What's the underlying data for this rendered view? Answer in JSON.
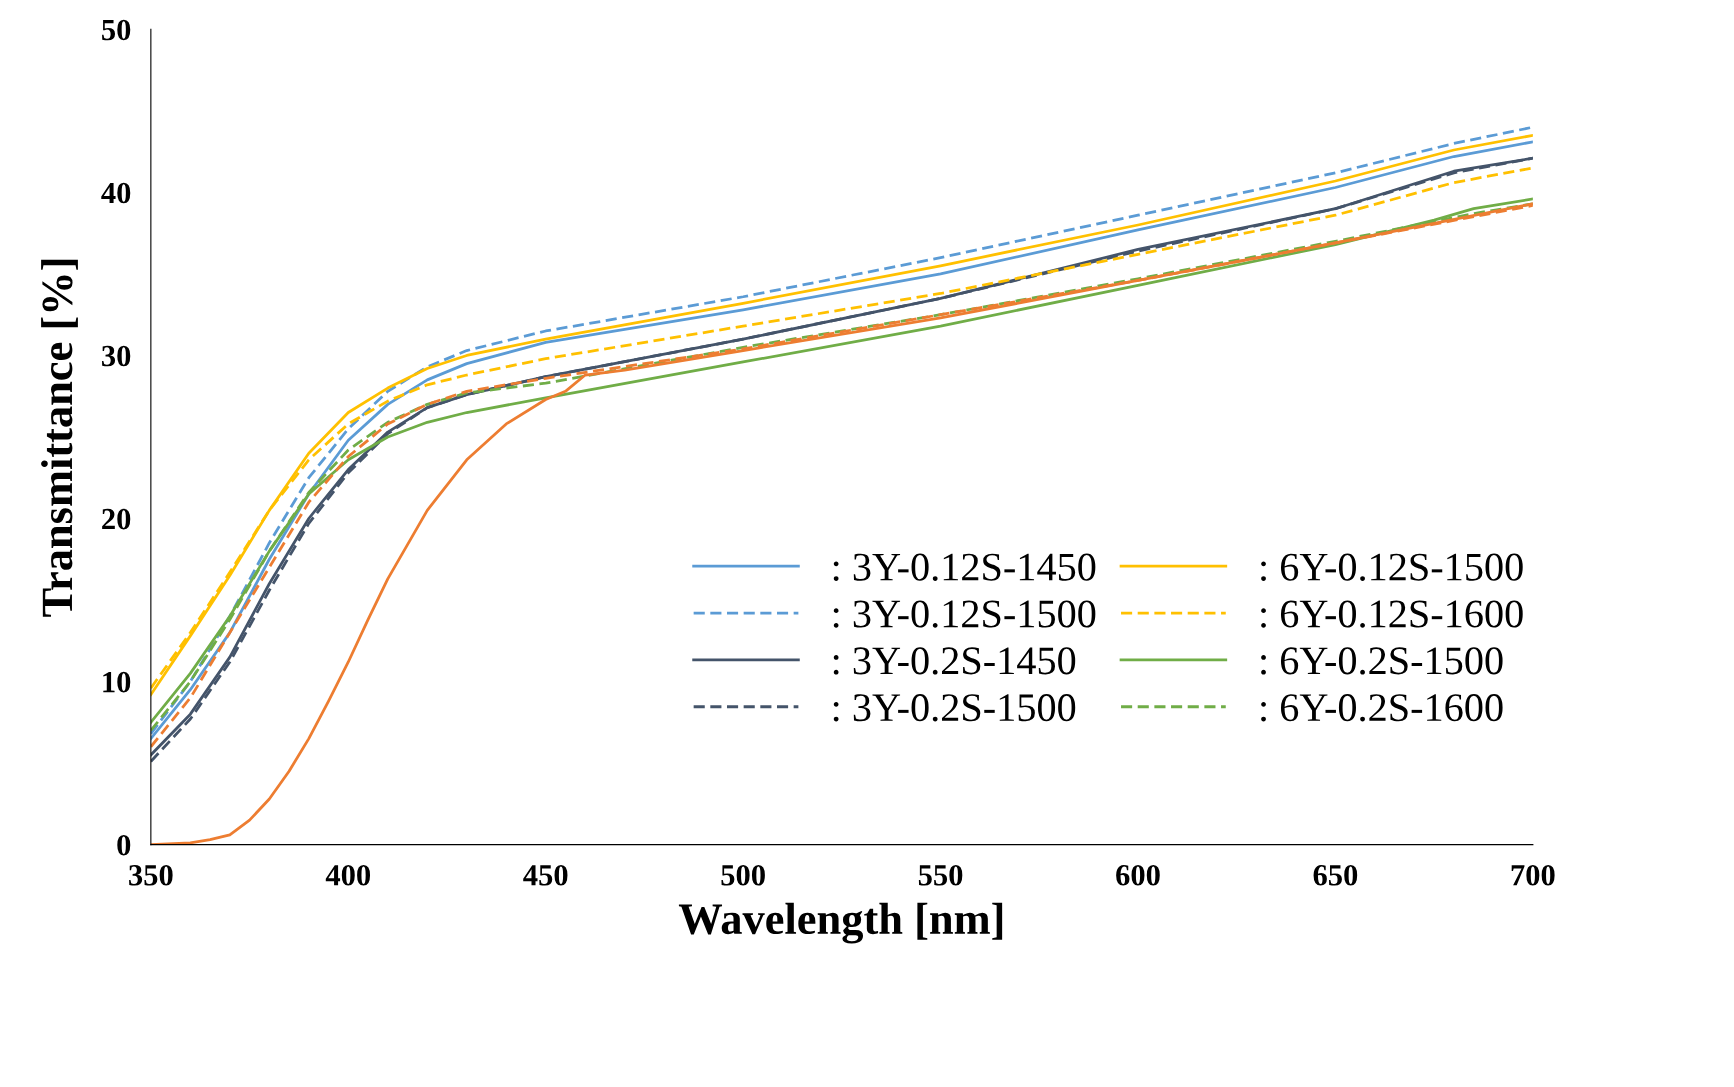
{
  "chart_data": {
    "type": "line",
    "xlabel": "Wavelength [nm]",
    "ylabel": "Transmittance [%]",
    "xlim": [
      350,
      700
    ],
    "ylim": [
      0,
      50
    ],
    "xticks": [
      350,
      400,
      450,
      500,
      550,
      600,
      650,
      700
    ],
    "yticks": [
      0,
      10,
      20,
      30,
      40,
      50
    ],
    "grid": false,
    "legend": "right",
    "marker": "none",
    "series": [
      {
        "name": ": 3Y-0.12S-1450",
        "color": "#5b9bd5",
        "line_style": "solid",
        "x": [
          350,
          360,
          370,
          380,
          390,
          400,
          410,
          420,
          430,
          450,
          500,
          550,
          600,
          650,
          680,
          700
        ],
        "values": [
          6.5,
          9.5,
          13,
          17.5,
          21.5,
          24.8,
          27,
          28.5,
          29.5,
          30.8,
          32.8,
          35,
          37.7,
          40.3,
          42.2,
          43.1
        ]
      },
      {
        "name": ": 3Y-0.12S-1500",
        "color": "#5b9bd5",
        "line_style": "dashed",
        "x": [
          350,
          360,
          370,
          380,
          390,
          400,
          410,
          420,
          430,
          450,
          500,
          550,
          600,
          650,
          680,
          700
        ],
        "values": [
          6.8,
          10,
          14,
          18.5,
          22.5,
          25.5,
          27.8,
          29.3,
          30.3,
          31.5,
          33.6,
          36,
          38.6,
          41.2,
          43,
          44
        ]
      },
      {
        "name": ": 3Y-0.2S-1450",
        "color": "#44546a",
        "line_style": "solid",
        "x": [
          350,
          360,
          370,
          380,
          390,
          400,
          410,
          420,
          430,
          450,
          500,
          550,
          600,
          650,
          680,
          700
        ],
        "values": [
          5.5,
          8,
          11.5,
          16,
          20,
          23,
          25.3,
          26.8,
          27.6,
          28.7,
          31,
          33.5,
          36.5,
          39,
          41.3,
          42.1
        ]
      },
      {
        "name": ": 3Y-0.2S-1500",
        "color": "#44546a",
        "line_style": "dashed",
        "x": [
          350,
          360,
          370,
          380,
          390,
          400,
          410,
          420,
          430,
          450,
          500,
          550,
          600,
          650,
          680,
          700
        ],
        "values": [
          5.1,
          7.7,
          11.2,
          15.6,
          19.7,
          22.8,
          25.2,
          26.8,
          27.6,
          28.7,
          31,
          33.5,
          36.4,
          39,
          41.2,
          42.1
        ]
      },
      {
        "name": ": 6Y-0.12S-1500",
        "color": "#ffc000",
        "line_style": "solid",
        "x": [
          350,
          360,
          370,
          380,
          390,
          400,
          410,
          420,
          430,
          450,
          500,
          550,
          600,
          650,
          680,
          700
        ],
        "values": [
          9.2,
          12.8,
          16.5,
          20.5,
          24,
          26.5,
          28,
          29.2,
          30,
          31,
          33.2,
          35.5,
          38,
          40.7,
          42.6,
          43.5
        ]
      },
      {
        "name": ": 6Y-0.12S-1600",
        "color": "#ffc000",
        "line_style": "dashed",
        "x": [
          350,
          360,
          370,
          380,
          390,
          400,
          410,
          420,
          430,
          450,
          500,
          550,
          600,
          650,
          680,
          700
        ],
        "values": [
          9.6,
          13,
          16.7,
          20.5,
          23.6,
          25.8,
          27.2,
          28.2,
          28.8,
          29.8,
          31.8,
          33.8,
          36.2,
          38.6,
          40.6,
          41.5
        ]
      },
      {
        "name": ": 6Y-0.2S-1500",
        "color": "#70ad47",
        "line_style": "solid",
        "x": [
          350,
          360,
          370,
          380,
          390,
          400,
          410,
          420,
          430,
          450,
          500,
          550,
          600,
          650,
          675,
          685,
          700
        ],
        "values": [
          7.5,
          10.5,
          14,
          18,
          21.5,
          23.6,
          25,
          25.9,
          26.5,
          27.4,
          29.6,
          31.8,
          34.3,
          36.8,
          38.3,
          39,
          39.6
        ]
      },
      {
        "name": ": 6Y-0.2S-1600",
        "color": "#70ad47",
        "line_style": "dashed",
        "x": [
          350,
          360,
          370,
          380,
          390,
          400,
          410,
          420,
          430,
          450,
          500,
          550,
          600,
          650,
          685,
          700
        ],
        "values": [
          7,
          10,
          13.8,
          18,
          21.6,
          24.2,
          25.9,
          27,
          27.7,
          28.3,
          30.5,
          32.5,
          34.7,
          37,
          38.7,
          39.3
        ]
      },
      {
        "color": "#ed7d31",
        "line_style": "solid",
        "x": [
          350,
          360,
          365,
          370,
          375,
          380,
          385,
          390,
          395,
          400,
          405,
          410,
          420,
          430,
          440,
          450,
          455,
          460,
          470,
          500,
          550,
          600,
          650,
          700
        ],
        "values": [
          0,
          0.1,
          0.3,
          0.6,
          1.5,
          2.8,
          4.5,
          6.5,
          8.8,
          11.2,
          13.8,
          16.3,
          20.5,
          23.6,
          25.8,
          27.3,
          27.8,
          28.8,
          29.1,
          30.3,
          32.3,
          34.6,
          36.9,
          39.3
        ]
      },
      {
        "color": "#ed7d31",
        "line_style": "dashed",
        "x": [
          350,
          360,
          370,
          380,
          390,
          400,
          410,
          420,
          430,
          450,
          500,
          550,
          600,
          650,
          700
        ],
        "values": [
          6,
          9,
          13,
          17,
          21,
          23.8,
          25.8,
          27,
          27.8,
          28.6,
          30.4,
          32.5,
          34.6,
          36.9,
          39.2
        ]
      }
    ]
  }
}
